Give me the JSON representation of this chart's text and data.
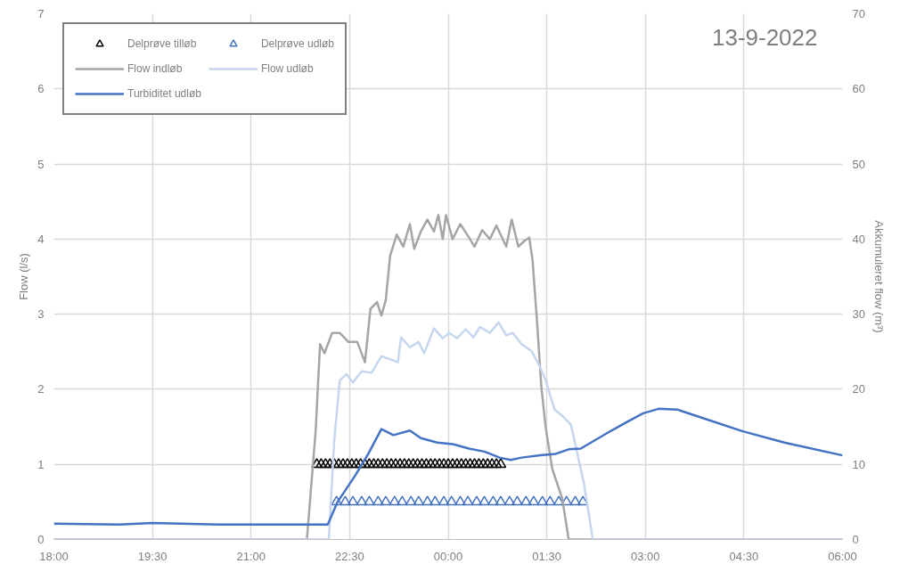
{
  "chart_data": {
    "type": "line",
    "ylabel": "Flow (l/s)",
    "y2label": "Akkumuleret flow (m³)",
    "annotations": [
      "13-9-2022"
    ],
    "xlim": [
      "2022-09-13T18:00",
      "2022-09-14T06:00"
    ],
    "xticks": [
      {
        "value": "2022-09-13T18:00",
        "label": "18:00"
      },
      {
        "value": "2022-09-13T19:30",
        "label": "19:30"
      },
      {
        "value": "2022-09-13T21:00",
        "label": "21:00"
      },
      {
        "value": "2022-09-13T22:30",
        "label": "22:30"
      },
      {
        "value": "2022-09-14T00:00",
        "label": "00:00"
      },
      {
        "value": "2022-09-14T01:30",
        "label": "01:30"
      },
      {
        "value": "2022-09-14T03:00",
        "label": "03:00"
      },
      {
        "value": "2022-09-14T04:30",
        "label": "04:30"
      },
      {
        "value": "2022-09-14T06:00",
        "label": "06:00"
      }
    ],
    "ylim": [
      0,
      7
    ],
    "yticks": [
      0,
      1,
      2,
      3,
      4,
      5,
      6,
      7
    ],
    "y2lim": [
      0,
      70
    ],
    "y2ticks": [
      0,
      10,
      20,
      30,
      40,
      50,
      60,
      70
    ],
    "grid": true,
    "legend": "top left",
    "series": [
      {
        "name": "Delprøve tilløb",
        "type": "scatter",
        "marker": "triangle",
        "color": "#000000",
        "x": [
          "2022-09-13T22:00",
          "2022-09-13T22:04",
          "2022-09-13T22:08",
          "2022-09-13T22:12",
          "2022-09-13T22:16",
          "2022-09-13T22:20",
          "2022-09-13T22:24",
          "2022-09-13T22:28",
          "2022-09-13T22:32",
          "2022-09-13T22:36",
          "2022-09-13T22:40",
          "2022-09-13T22:44",
          "2022-09-13T22:48",
          "2022-09-13T22:52",
          "2022-09-13T22:56",
          "2022-09-13T23:00",
          "2022-09-13T23:04",
          "2022-09-13T23:08",
          "2022-09-13T23:12",
          "2022-09-13T23:16",
          "2022-09-13T23:20",
          "2022-09-13T23:24",
          "2022-09-13T23:28",
          "2022-09-13T23:32",
          "2022-09-13T23:36",
          "2022-09-13T23:40",
          "2022-09-13T23:44",
          "2022-09-13T23:48",
          "2022-09-13T23:52",
          "2022-09-13T23:56",
          "2022-09-14T00:00",
          "2022-09-14T00:04",
          "2022-09-14T00:08",
          "2022-09-14T00:12",
          "2022-09-14T00:16",
          "2022-09-14T00:20",
          "2022-09-14T00:24",
          "2022-09-14T00:28",
          "2022-09-14T00:32",
          "2022-09-14T00:36",
          "2022-09-14T00:40",
          "2022-09-14T00:44",
          "2022-09-14T00:48"
        ],
        "values": [
          1,
          1,
          1,
          1,
          1,
          1,
          1,
          1,
          1,
          1,
          1,
          1,
          1,
          1,
          1,
          1,
          1,
          1,
          1,
          1,
          1,
          1,
          1,
          1,
          1,
          1,
          1,
          1,
          1,
          1,
          1,
          1,
          1,
          1,
          1,
          1,
          1,
          1,
          1,
          1,
          1,
          1,
          1
        ]
      },
      {
        "name": "Delprøve udløb",
        "type": "scatter",
        "marker": "triangle",
        "color": "#4472c4",
        "x": [
          "2022-09-13T22:18",
          "2022-09-13T22:26",
          "2022-09-13T22:33",
          "2022-09-13T22:41",
          "2022-09-13T22:48",
          "2022-09-13T22:56",
          "2022-09-13T23:03",
          "2022-09-13T23:11",
          "2022-09-13T23:18",
          "2022-09-13T23:26",
          "2022-09-13T23:33",
          "2022-09-13T23:41",
          "2022-09-13T23:48",
          "2022-09-13T23:56",
          "2022-09-14T00:03",
          "2022-09-14T00:11",
          "2022-09-14T00:18",
          "2022-09-14T00:26",
          "2022-09-14T00:33",
          "2022-09-14T00:41",
          "2022-09-14T00:48",
          "2022-09-14T00:56",
          "2022-09-14T01:03",
          "2022-09-14T01:11",
          "2022-09-14T01:18",
          "2022-09-14T01:26",
          "2022-09-14T01:33",
          "2022-09-14T01:41",
          "2022-09-14T01:48",
          "2022-09-14T01:56",
          "2022-09-14T02:03"
        ],
        "values": [
          0.5,
          0.5,
          0.5,
          0.5,
          0.5,
          0.5,
          0.5,
          0.5,
          0.5,
          0.5,
          0.5,
          0.5,
          0.5,
          0.5,
          0.5,
          0.5,
          0.5,
          0.5,
          0.5,
          0.5,
          0.5,
          0.5,
          0.5,
          0.5,
          0.5,
          0.5,
          0.5,
          0.5,
          0.5,
          0.5,
          0.5
        ]
      },
      {
        "name": "Flow indløb",
        "color": "#a5a5a5",
        "x": [
          "2022-09-13T18:00",
          "2022-09-13T21:51",
          "2022-09-13T21:59",
          "2022-09-13T22:03",
          "2022-09-13T22:07",
          "2022-09-13T22:14",
          "2022-09-13T22:21",
          "2022-09-13T22:29",
          "2022-09-13T22:37",
          "2022-09-13T22:44",
          "2022-09-13T22:49",
          "2022-09-13T22:55",
          "2022-09-13T22:59",
          "2022-09-13T23:03",
          "2022-09-13T23:07",
          "2022-09-13T23:13",
          "2022-09-13T23:19",
          "2022-09-13T23:25",
          "2022-09-13T23:29",
          "2022-09-13T23:35",
          "2022-09-13T23:41",
          "2022-09-13T23:47",
          "2022-09-13T23:51",
          "2022-09-13T23:55",
          "2022-09-13T23:58",
          "2022-09-14T00:04",
          "2022-09-14T00:11",
          "2022-09-14T00:19",
          "2022-09-14T00:24",
          "2022-09-14T00:31",
          "2022-09-14T00:38",
          "2022-09-14T00:44",
          "2022-09-14T00:53",
          "2022-09-14T00:58",
          "2022-09-14T01:04",
          "2022-09-14T01:10",
          "2022-09-14T01:14",
          "2022-09-14T01:17",
          "2022-09-14T01:21",
          "2022-09-14T01:25",
          "2022-09-14T01:29",
          "2022-09-14T01:35",
          "2022-09-14T01:44",
          "2022-09-14T01:50",
          "2022-09-14T06:00"
        ],
        "values": [
          0,
          0,
          1.45,
          2.6,
          2.48,
          2.75,
          2.75,
          2.63,
          2.63,
          2.36,
          3.07,
          3.16,
          2.98,
          3.19,
          3.78,
          4.06,
          3.9,
          4.2,
          3.87,
          4.1,
          4.26,
          4.1,
          4.32,
          4,
          4.32,
          4,
          4.2,
          4.02,
          3.9,
          4.12,
          4,
          4.18,
          3.9,
          4.26,
          3.9,
          3.98,
          4.02,
          3.72,
          2.92,
          2.04,
          1.49,
          0.94,
          0.55,
          0,
          0
        ]
      },
      {
        "name": "Flow udløb",
        "color": "#c6d6ee",
        "x": [
          "2022-09-13T18:00",
          "2022-09-13T22:11",
          "2022-09-13T22:16",
          "2022-09-13T22:21",
          "2022-09-13T22:27",
          "2022-09-13T22:33",
          "2022-09-13T22:41",
          "2022-09-13T22:50",
          "2022-09-13T22:59",
          "2022-09-13T23:07",
          "2022-09-13T23:14",
          "2022-09-13T23:17",
          "2022-09-13T23:25",
          "2022-09-13T23:33",
          "2022-09-13T23:38",
          "2022-09-13T23:47",
          "2022-09-13T23:55",
          "2022-09-14T00:01",
          "2022-09-14T00:08",
          "2022-09-14T00:16",
          "2022-09-14T00:23",
          "2022-09-14T00:29",
          "2022-09-14T00:38",
          "2022-09-14T00:46",
          "2022-09-14T00:53",
          "2022-09-14T00:59",
          "2022-09-14T01:07",
          "2022-09-14T01:16",
          "2022-09-14T01:23",
          "2022-09-14T01:29",
          "2022-09-14T01:37",
          "2022-09-14T01:44",
          "2022-09-14T01:52",
          "2022-09-14T01:58",
          "2022-09-14T02:04",
          "2022-09-14T02:12",
          "2022-09-14T06:00"
        ],
        "values": [
          0,
          0,
          1.33,
          2.12,
          2.2,
          2.09,
          2.24,
          2.22,
          2.44,
          2.4,
          2.36,
          2.69,
          2.56,
          2.63,
          2.48,
          2.81,
          2.68,
          2.75,
          2.68,
          2.8,
          2.69,
          2.83,
          2.75,
          2.89,
          2.72,
          2.75,
          2.6,
          2.51,
          2.32,
          2.12,
          1.73,
          1.65,
          1.53,
          1.14,
          0.74,
          0,
          0
        ]
      },
      {
        "name": "Turbiditet udløb",
        "color": "#4472c4",
        "x": [
          "2022-09-13T18:00",
          "2022-09-13T19:00",
          "2022-09-13T19:30",
          "2022-09-13T20:30",
          "2022-09-13T21:30",
          "2022-09-13T22:10",
          "2022-09-13T22:19",
          "2022-09-13T22:35",
          "2022-09-13T22:47",
          "2022-09-13T22:59",
          "2022-09-13T23:10",
          "2022-09-13T23:25",
          "2022-09-13T23:35",
          "2022-09-13T23:50",
          "2022-09-14T00:04",
          "2022-09-14T00:19",
          "2022-09-14T00:33",
          "2022-09-14T00:47",
          "2022-09-14T00:57",
          "2022-09-14T01:07",
          "2022-09-14T01:24",
          "2022-09-14T01:38",
          "2022-09-14T01:50",
          "2022-09-14T02:01",
          "2022-09-14T02:29",
          "2022-09-14T02:44",
          "2022-09-14T02:58",
          "2022-09-14T03:12",
          "2022-09-14T03:29",
          "2022-09-14T03:58",
          "2022-09-14T04:29",
          "2022-09-14T05:07",
          "2022-09-14T06:00"
        ],
        "values": [
          0.21,
          0.2,
          0.22,
          0.2,
          0.2,
          0.2,
          0.5,
          0.85,
          1.14,
          1.47,
          1.39,
          1.45,
          1.35,
          1.29,
          1.27,
          1.21,
          1.17,
          1.09,
          1.06,
          1.09,
          1.12,
          1.14,
          1.2,
          1.21,
          1.45,
          1.57,
          1.68,
          1.74,
          1.73,
          1.59,
          1.44,
          1.29,
          1.12
        ]
      }
    ]
  }
}
